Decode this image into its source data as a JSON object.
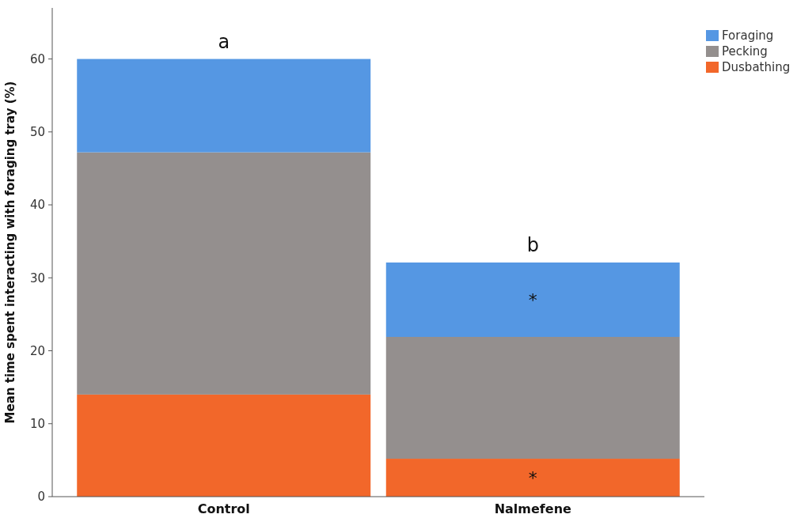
{
  "chart_data": {
    "type": "bar",
    "stacked": true,
    "categories": [
      "Control",
      "Nalmefene"
    ],
    "ylabel": "Mean time spent interacting with foraging tray (%)",
    "ylim": [
      0,
      67
    ],
    "yticks": [
      0,
      10,
      20,
      30,
      40,
      50,
      60
    ],
    "grid": false,
    "legend": "top right",
    "series": [
      {
        "name": "Dusbathing",
        "color": "#f2672a",
        "values": [
          14,
          5.2
        ]
      },
      {
        "name": "Pecking",
        "color": "#948f8e",
        "values": [
          33.2,
          16.7
        ]
      },
      {
        "name": "Foraging",
        "color": "#5597e3",
        "values": [
          12.8,
          10.2
        ]
      }
    ],
    "annotations": [
      {
        "text": "a",
        "x": "Control",
        "y": 60
      },
      {
        "text": "b",
        "x": "Nalmefene",
        "y": 32.1
      },
      "*",
      "*"
    ]
  }
}
